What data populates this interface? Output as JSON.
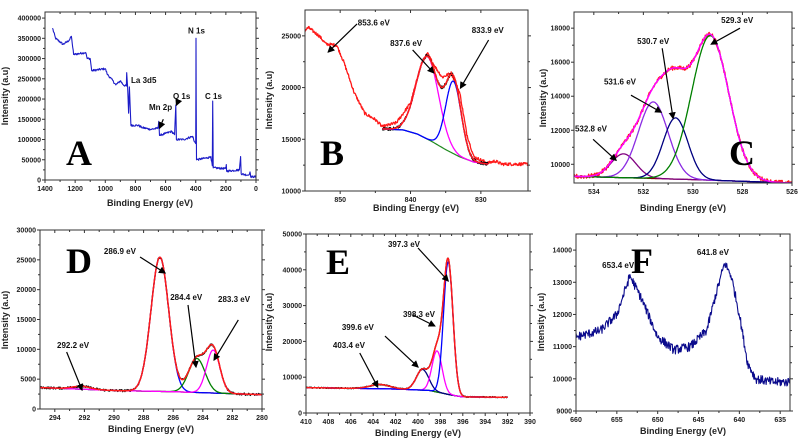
{
  "chart_data": [
    {
      "id": "A",
      "type": "line",
      "panel_letter": "A",
      "xlabel": "Binding Energy (eV)",
      "ylabel": "Intensity (a.u)",
      "xlim": [
        1400,
        0
      ],
      "ylim": [
        0,
        415000
      ],
      "xticks": [
        1400,
        1200,
        1000,
        800,
        600,
        400,
        200,
        0
      ],
      "yticks": [
        0,
        50000,
        100000,
        150000,
        200000,
        250000,
        300000,
        350000,
        400000
      ],
      "data_color": "#1c1cc8",
      "noise": 2500,
      "data_points": [
        [
          1350,
          375000
        ],
        [
          1330,
          350000
        ],
        [
          1280,
          335000
        ],
        [
          1240,
          345000
        ],
        [
          1225,
          355000
        ],
        [
          1210,
          310000
        ],
        [
          1130,
          315000
        ],
        [
          1120,
          300000
        ],
        [
          1100,
          300000
        ],
        [
          1090,
          270000
        ],
        [
          1000,
          275000
        ],
        [
          985,
          260000
        ],
        [
          960,
          250000
        ],
        [
          930,
          235000
        ],
        [
          900,
          245000
        ],
        [
          880,
          235000
        ],
        [
          860,
          232000
        ],
        [
          858,
          265000
        ],
        [
          852,
          230000
        ],
        [
          845,
          165000
        ],
        [
          840,
          230000
        ],
        [
          830,
          135000
        ],
        [
          780,
          135000
        ],
        [
          760,
          130000
        ],
        [
          700,
          125000
        ],
        [
          650,
          128000
        ],
        [
          645,
          145000
        ],
        [
          640,
          110000
        ],
        [
          600,
          115000
        ],
        [
          560,
          120000
        ],
        [
          540,
          112000
        ],
        [
          532,
          185000
        ],
        [
          528,
          100000
        ],
        [
          480,
          100000
        ],
        [
          420,
          108000
        ],
        [
          410,
          95000
        ],
        [
          400,
          90000
        ],
        [
          398,
          350000
        ],
        [
          395,
          50000
        ],
        [
          320,
          55000
        ],
        [
          300,
          58000
        ],
        [
          290,
          35000
        ],
        [
          287,
          195000
        ],
        [
          284,
          30000
        ],
        [
          200,
          28000
        ],
        [
          197,
          38000
        ],
        [
          195,
          22000
        ],
        [
          110,
          25000
        ],
        [
          102,
          58000
        ],
        [
          98,
          15000
        ],
        [
          50,
          12000
        ],
        [
          40,
          20000
        ],
        [
          35,
          8000
        ],
        [
          0,
          8000
        ]
      ],
      "annotations": [
        {
          "text": "N 1s",
          "at": [
            451,
            362500
          ]
        },
        {
          "text": "C 1s",
          "at": [
            338,
            200000
          ]
        },
        {
          "text": "O 1s",
          "at": [
            551,
            200000
          ],
          "arrow": [
            [
              520,
              192000
            ],
            [
              528,
              185000
            ]
          ]
        },
        {
          "text": "Mn 2p",
          "at": [
            710,
            172500
          ],
          "arrow": [
            [
              615,
              150000
            ],
            [
              640,
              128000
            ]
          ]
        },
        {
          "text": "La 3d5",
          "at": [
            829,
            240000
          ]
        }
      ]
    },
    {
      "id": "B",
      "type": "line",
      "panel_letter": "B",
      "xlabel": "Binding Energy (eV)",
      "ylabel": "Intensity (a.u)",
      "xlim": [
        855,
        823.3
      ],
      "ylim": [
        10000,
        27500
      ],
      "xticks": [
        850,
        840,
        830
      ],
      "yticks": [
        10000,
        15000,
        20000,
        25000
      ],
      "data_color": "#ff1a1a",
      "noise": 150,
      "fit_data_color": "#000000",
      "data_points": [
        [
          855.5,
          25300
        ],
        [
          854.5,
          25800
        ],
        [
          853,
          25000
        ],
        [
          852,
          24200
        ],
        [
          850.5,
          24100
        ],
        [
          849.5,
          22500
        ],
        [
          848,
          19500
        ],
        [
          846.5,
          17500
        ],
        [
          845,
          16900
        ],
        [
          844,
          16200
        ],
        [
          842,
          16600
        ],
        [
          840,
          18500
        ],
        [
          838.5,
          22200
        ],
        [
          837.6,
          23300
        ],
        [
          836.5,
          22000
        ],
        [
          835.5,
          21000
        ],
        [
          834.2,
          21400
        ],
        [
          833,
          19500
        ],
        [
          832,
          15500
        ],
        [
          831,
          13300
        ],
        [
          829,
          12700
        ],
        [
          828,
          12900
        ],
        [
          827,
          12600
        ],
        [
          823.3,
          12600
        ]
      ],
      "fit_range": [
        844,
        829
      ],
      "background": {
        "color": "#1f8a1f",
        "points": [
          [
            844,
            16000
          ],
          [
            841,
            15900
          ],
          [
            839,
            15500
          ],
          [
            837,
            14800
          ],
          [
            835,
            14000
          ],
          [
            833,
            13300
          ],
          [
            831,
            12800
          ],
          [
            829,
            12600
          ]
        ]
      },
      "components": [
        {
          "center": 837.6,
          "amp": 8000,
          "sigma": 1.6,
          "color": "#ff00ff"
        },
        {
          "center": 833.9,
          "amp": 7000,
          "sigma": 1.1,
          "color": "#0000ff"
        }
      ],
      "envelope_color": "#ff1a1a",
      "annotations": [
        {
          "text": "853.6 eV",
          "at": [
            847.5,
            26000
          ],
          "arrow": [
            [
              847.6,
              26150
            ],
            [
              851.7,
              23440
            ]
          ]
        },
        {
          "text": "837.6 eV",
          "at": [
            842.9,
            24000
          ],
          "arrow": [
            [
              839.7,
              23640
            ],
            [
              836.7,
              21420
            ]
          ]
        },
        {
          "text": "833.9 eV",
          "at": [
            831.3,
            25280
          ],
          "arrow": [
            [
              828.9,
              24600
            ],
            [
              832.9,
              19950
            ]
          ]
        }
      ]
    },
    {
      "id": "C",
      "type": "line",
      "panel_letter": "C",
      "xlabel": "Binding Energy (eV)",
      "ylabel": "Intensity (a.u)",
      "xlim": [
        534.8,
        526
      ],
      "ylim": [
        8900,
        18950
      ],
      "xticks": [
        534,
        532,
        530,
        528,
        526
      ],
      "yticks": [
        10000,
        12000,
        14000,
        16000,
        18000
      ],
      "data_color": "#ff1a1a",
      "noise": 130,
      "fit_range": [
        534.8,
        526
      ],
      "background": {
        "color": "#800000",
        "points": [
          [
            535,
            9300
          ],
          [
            530,
            9100
          ],
          [
            526,
            8900
          ]
        ]
      },
      "components": [
        {
          "center": 532.8,
          "amp": 1400,
          "sigma": 0.5,
          "color": "#800080"
        },
        {
          "center": 531.6,
          "amp": 4500,
          "sigma": 0.6,
          "color": "#8a2be2"
        },
        {
          "center": 530.7,
          "amp": 3600,
          "sigma": 0.5,
          "color": "#000080"
        },
        {
          "center": 529.3,
          "amp": 8500,
          "sigma": 0.75,
          "color": "#008000"
        }
      ],
      "envelope_color": "#ff00ff",
      "annotations": [
        {
          "text": "529.3 eV",
          "at": [
            528.86,
            18290
          ],
          "arrow": [
            [
              528.1,
              18000
            ],
            [
              529.26,
              17060
            ]
          ]
        },
        {
          "text": "530.7 eV",
          "at": [
            532.25,
            17060
          ],
          "arrow": [
            [
              531.24,
              16820
            ],
            [
              530.8,
              12700
            ]
          ]
        },
        {
          "text": "531.6 eV",
          "at": [
            533.59,
            14700
          ],
          "arrow": [
            [
              532.5,
              14060
            ],
            [
              531.28,
              13060
            ]
          ]
        },
        {
          "text": "532.8 eV",
          "at": [
            534.76,
            11940
          ],
          "arrow": [
            [
              534.03,
              11470
            ],
            [
              533.1,
              10235
            ]
          ]
        }
      ]
    },
    {
      "id": "D",
      "type": "line",
      "panel_letter": "D",
      "xlabel": "Binding Energy (eV)",
      "ylabel": "Intensity (a.u)",
      "xlim": [
        295,
        280
      ],
      "ylim": [
        0,
        30000
      ],
      "xticks": [
        294,
        292,
        290,
        288,
        286,
        284,
        282,
        280
      ],
      "yticks": [
        0,
        5000,
        10000,
        15000,
        20000,
        25000,
        30000
      ],
      "data_color": "#000000",
      "noise": 180,
      "fit_range": [
        295,
        280
      ],
      "background": {
        "color": "#9932cc",
        "points": [
          [
            295,
            3600
          ],
          [
            290,
            3100
          ],
          [
            286,
            2900
          ],
          [
            280,
            2400
          ]
        ]
      },
      "components": [
        {
          "center": 292.2,
          "amp": 500,
          "sigma": 0.6,
          "color": "#8b4513"
        },
        {
          "center": 286.9,
          "amp": 22500,
          "sigma": 0.6,
          "color": "#0000ff"
        },
        {
          "center": 284.4,
          "amp": 5700,
          "sigma": 0.55,
          "color": "#008000"
        },
        {
          "center": 283.3,
          "amp": 7200,
          "sigma": 0.45,
          "color": "#ff00ff"
        }
      ],
      "envelope_color": "#ff1a1a",
      "annotations": [
        {
          "text": "286.9 eV",
          "at": [
            290.68,
            26000
          ],
          "arrow": [
            [
              288.24,
              25470
            ],
            [
              286.55,
              22790
            ]
          ]
        },
        {
          "text": "284.4 eV",
          "at": [
            286.2,
            18270
          ],
          "arrow": [
            [
              285.0,
              17430
            ],
            [
              284.46,
              7040
            ]
          ]
        },
        {
          "text": "283.3 eV",
          "at": [
            282.97,
            17930
          ],
          "arrow": [
            [
              281.6,
              14920
            ],
            [
              283.24,
              8210
            ]
          ]
        },
        {
          "text": "292.2 eV",
          "at": [
            293.85,
            10220
          ],
          "arrow": [
            [
              293.2,
              9550
            ],
            [
              292.16,
              3180
            ]
          ]
        }
      ]
    },
    {
      "id": "E",
      "type": "line",
      "panel_letter": "E",
      "xlabel": "Binding Energy (eV)",
      "ylabel": "Intensity (a.u)",
      "xlim": [
        410,
        390
      ],
      "ylim": [
        0,
        50000
      ],
      "xticks": [
        410,
        408,
        406,
        404,
        402,
        400,
        398,
        396,
        394,
        392,
        390
      ],
      "yticks": [
        0,
        10000,
        20000,
        30000,
        40000,
        50000
      ],
      "data_color": "#000000",
      "noise": 150,
      "fit_range": [
        410,
        392
      ],
      "background": {
        "color": "#9932cc",
        "points": [
          [
            410,
            7100
          ],
          [
            402,
            6700
          ],
          [
            399,
            6300
          ],
          [
            397,
            5000
          ],
          [
            396,
            4500
          ],
          [
            392,
            4400
          ]
        ]
      },
      "components": [
        {
          "center": 403.4,
          "amp": 1200,
          "sigma": 0.9,
          "color": "#008000"
        },
        {
          "center": 399.6,
          "amp": 5800,
          "sigma": 0.55,
          "color": "#000080"
        },
        {
          "center": 398.3,
          "amp": 11500,
          "sigma": 0.45,
          "color": "#ff00ff"
        },
        {
          "center": 397.3,
          "amp": 37000,
          "sigma": 0.42,
          "color": "#0000ff"
        }
      ],
      "envelope_color": "#ff1a1a",
      "annotations": [
        {
          "text": "397.3 eV",
          "at": [
            402.68,
            46370
          ],
          "arrow": [
            [
              400.0,
              46090
            ],
            [
              397.3,
              36870
            ]
          ]
        },
        {
          "text": "398.3 eV",
          "at": [
            401.34,
            26800
          ],
          "arrow": [
            [
              400.45,
              27370
            ],
            [
              398.5,
              24300
            ]
          ]
        },
        {
          "text": "399.6 eV",
          "at": [
            406.8,
            23180
          ],
          "arrow": [
            [
              402.95,
              21500
            ],
            [
              400.0,
              12850
            ]
          ]
        },
        {
          "text": "403.4 eV",
          "at": [
            407.6,
            18160
          ],
          "arrow": [
            [
              405.2,
              16760
            ],
            [
              403.6,
              7260
            ]
          ]
        }
      ]
    },
    {
      "id": "F",
      "type": "line",
      "panel_letter": "F",
      "xlabel": "Binding Energy (eV)",
      "ylabel": "Intensity (a.u)",
      "xlim": [
        660,
        633.8
      ],
      "ylim": [
        9000,
        14500
      ],
      "xticks": [
        660,
        655,
        650,
        645,
        640,
        635
      ],
      "yticks": [
        9000,
        10000,
        11000,
        12000,
        13000,
        14000
      ],
      "data_color": "#0a0a8c",
      "noise": 140,
      "data_points": [
        [
          660,
          11300
        ],
        [
          657,
          11500
        ],
        [
          655,
          12000
        ],
        [
          653.4,
          13200
        ],
        [
          652,
          12500
        ],
        [
          650,
          11300
        ],
        [
          648,
          10900
        ],
        [
          646,
          11000
        ],
        [
          644,
          11500
        ],
        [
          643,
          12500
        ],
        [
          641.8,
          13600
        ],
        [
          641,
          13200
        ],
        [
          640,
          12000
        ],
        [
          639,
          10500
        ],
        [
          638,
          10000
        ],
        [
          636,
          9900
        ],
        [
          634,
          9900
        ],
        [
          633.8,
          10000
        ]
      ],
      "annotations": [
        {
          "text": "653.4 eV",
          "at": [
            656.8,
            13440
          ]
        },
        {
          "text": "641.8 eV",
          "at": [
            645.2,
            13845
          ]
        }
      ]
    }
  ]
}
